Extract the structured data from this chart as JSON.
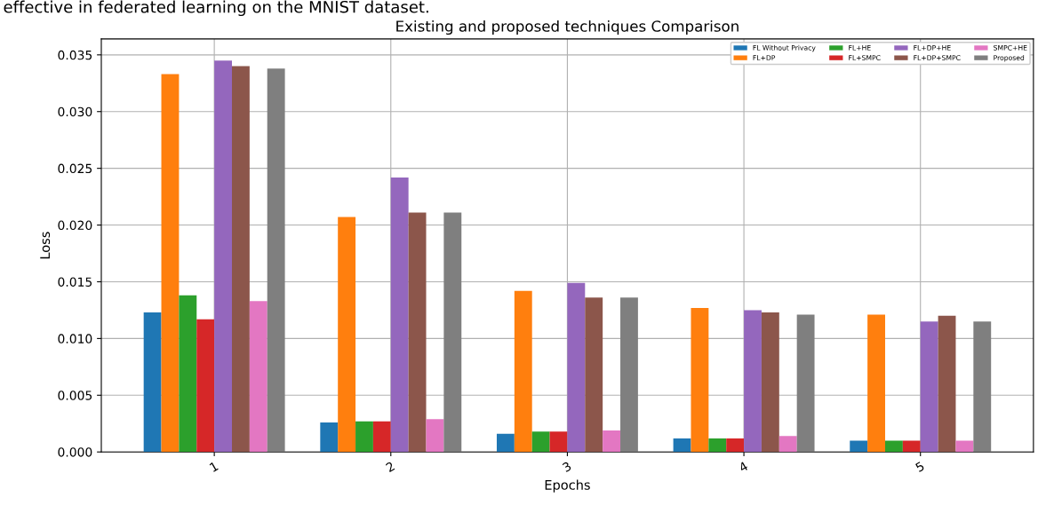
{
  "chart_data": {
    "type": "bar",
    "title": "Existing and proposed techniques Comparison",
    "xlabel": "Epochs",
    "ylabel": "Loss",
    "annotations": [
      "effective in federated learning on the MNIST dataset."
    ],
    "categories": [
      "1",
      "2",
      "3",
      "4",
      "5"
    ],
    "series": [
      {
        "name": "FL Without Privacy",
        "color": "#1f77b4",
        "values": [
          0.0123,
          0.0026,
          0.0016,
          0.0012,
          0.001
        ]
      },
      {
        "name": "FL+DP",
        "color": "#ff7f0e",
        "values": [
          0.0333,
          0.0207,
          0.0142,
          0.0127,
          0.0121
        ]
      },
      {
        "name": "FL+HE",
        "color": "#2ca02c",
        "values": [
          0.0138,
          0.0027,
          0.0018,
          0.0012,
          0.001
        ]
      },
      {
        "name": "FL+SMPC",
        "color": "#d62728",
        "values": [
          0.0117,
          0.0027,
          0.0018,
          0.0012,
          0.001
        ]
      },
      {
        "name": "FL+DP+HE",
        "color": "#9467bd",
        "values": [
          0.0345,
          0.0242,
          0.0149,
          0.0125,
          0.0115
        ]
      },
      {
        "name": "FL+DP+SMPC",
        "color": "#8c564b",
        "values": [
          0.034,
          0.0211,
          0.0136,
          0.0123,
          0.012
        ]
      },
      {
        "name": "SMPC+HE",
        "color": "#e377c2",
        "values": [
          0.0133,
          0.0029,
          0.0019,
          0.0014,
          0.001
        ]
      },
      {
        "name": "Proposed",
        "color": "#7f7f7f",
        "values": [
          0.0338,
          0.0211,
          0.0136,
          0.0121,
          0.0115
        ]
      }
    ],
    "ylim": [
      0,
      0.0364
    ],
    "yticks": [
      {
        "value": 0,
        "label": "0.000"
      },
      {
        "value": 0.005,
        "label": "0.005"
      },
      {
        "value": 0.01,
        "label": "0.010"
      },
      {
        "value": 0.015,
        "label": "0.015"
      },
      {
        "value": 0.02,
        "label": "0.020"
      },
      {
        "value": 0.025,
        "label": "0.025"
      },
      {
        "value": 0.03,
        "label": "0.030"
      },
      {
        "value": 0.035,
        "label": "0.035"
      }
    ],
    "grid": true,
    "legend": "top right"
  }
}
